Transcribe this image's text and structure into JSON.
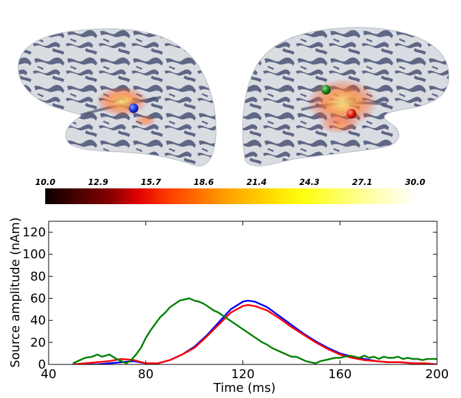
{
  "colorbar": {
    "ticks": [
      "10.0",
      "12.9",
      "15.7",
      "18.6",
      "21.4",
      "24.3",
      "27.1",
      "30.0"
    ],
    "colormap": "hot"
  },
  "markers": [
    {
      "name": "blue-source-marker",
      "color": "#1a35e0"
    },
    {
      "name": "green-source-marker",
      "color": "#1f8a1f"
    },
    {
      "name": "red-source-marker",
      "color": "#e01f12"
    }
  ],
  "chart_data": {
    "type": "line",
    "xlabel": "Time (ms)",
    "ylabel": "Source amplitude (nAm)",
    "xlim": [
      40,
      200
    ],
    "ylim": [
      0,
      130
    ],
    "xticks": [
      40,
      80,
      120,
      160,
      200
    ],
    "yticks": [
      0,
      20,
      40,
      60,
      80,
      100,
      120
    ],
    "grid": false,
    "series": [
      {
        "color": "#0000ff",
        "x": [
          50,
          55,
          60,
          65,
          70,
          75,
          80,
          85,
          90,
          95,
          100,
          105,
          110,
          115,
          120,
          122,
          125,
          130,
          135,
          140,
          145,
          150,
          155,
          160,
          165,
          170,
          175,
          180,
          185,
          190,
          195,
          200
        ],
        "y": [
          0,
          0,
          0,
          1,
          2,
          3,
          1,
          1,
          4,
          9,
          16,
          26,
          38,
          50,
          57,
          58,
          57,
          52,
          44,
          36,
          28,
          21,
          15,
          10,
          7,
          5,
          3,
          2,
          2,
          1,
          1,
          0
        ]
      },
      {
        "color": "#ff0000",
        "x": [
          50,
          55,
          60,
          65,
          70,
          75,
          80,
          85,
          90,
          95,
          100,
          105,
          110,
          115,
          120,
          122,
          125,
          130,
          135,
          140,
          145,
          150,
          155,
          160,
          165,
          170,
          175,
          180,
          185,
          190,
          195,
          200
        ],
        "y": [
          0,
          1,
          2,
          3,
          5,
          4,
          1,
          1,
          4,
          9,
          15,
          25,
          36,
          47,
          53,
          54,
          53,
          49,
          42,
          34,
          27,
          20,
          14,
          9,
          6,
          4,
          3,
          2,
          2,
          1,
          1,
          0
        ]
      },
      {
        "color": "#008000",
        "x": [
          50,
          52,
          55,
          58,
          60,
          62,
          65,
          68,
          70,
          72,
          74,
          76,
          78,
          80,
          82,
          84,
          86,
          88,
          90,
          92,
          94,
          96,
          98,
          100,
          102,
          104,
          106,
          108,
          110,
          112,
          114,
          116,
          118,
          120,
          122,
          124,
          126,
          128,
          130,
          132,
          134,
          136,
          138,
          140,
          142,
          144,
          146,
          148,
          150,
          152,
          154,
          156,
          158,
          160,
          162,
          164,
          166,
          168,
          170,
          172,
          174,
          176,
          178,
          180,
          182,
          184,
          186,
          188,
          190,
          192,
          194,
          196,
          198,
          200
        ],
        "y": [
          1,
          3,
          6,
          7,
          9,
          7,
          9,
          5,
          3,
          1,
          4,
          9,
          15,
          24,
          31,
          37,
          43,
          47,
          52,
          55,
          58,
          59,
          60,
          58,
          57,
          55,
          52,
          49,
          47,
          44,
          41,
          38,
          35,
          32,
          29,
          26,
          23,
          20,
          18,
          15,
          13,
          11,
          9,
          7,
          7,
          5,
          3,
          2,
          1,
          3,
          4,
          5,
          6,
          6,
          7,
          8,
          7,
          6,
          8,
          6,
          7,
          5,
          7,
          6,
          6,
          7,
          5,
          6,
          5,
          5,
          4,
          5,
          5,
          5
        ]
      }
    ]
  }
}
